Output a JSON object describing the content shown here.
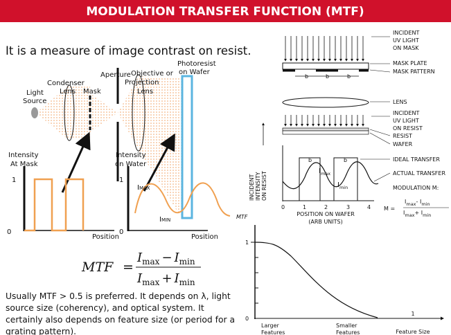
{
  "header": {
    "title": "MODULATION TRANSFER FUNCTION (MTF)"
  },
  "intro": "It is a measure of image contrast on resist.",
  "optics": {
    "light_source": [
      "Light",
      "Source"
    ],
    "condenser_lens": [
      "Condenser",
      "Lens"
    ],
    "mask": "Mask",
    "aperture": "Aperture",
    "projection_lens": [
      "Objective or",
      "Projection",
      "Lens"
    ],
    "photoresist": [
      "Photoresist",
      "on Wafer"
    ]
  },
  "mask_plot": {
    "ylabel": [
      "Intensity",
      "At Mask"
    ],
    "ticks": [
      "1",
      "0"
    ],
    "xlabel": "Position"
  },
  "wafer_plot": {
    "ylabel": [
      "Intensity",
      "on Water"
    ],
    "ticks": [
      "1",
      "0"
    ],
    "xlabel": "Position",
    "max": [
      "I",
      "MAX"
    ],
    "min": [
      "I",
      "MIN"
    ]
  },
  "formula": {
    "lhs": "MTF",
    "eq": "=",
    "numerator": [
      "I",
      "max",
      "−",
      "I",
      "min"
    ],
    "denominator": [
      "I",
      "max",
      "+",
      "I",
      "min"
    ]
  },
  "paragraph": [
    "Usually MTF > 0.5 is preferred. It depends on λ, light",
    "source size (coherency), and optical system. It",
    "certainly also depends on feature size (or period for a",
    "grating pattern)."
  ],
  "schematic": {
    "incident_mask": [
      "INCIDENT",
      "UV LIGHT",
      "ON MASK"
    ],
    "mask_plate": "MASK PLATE",
    "mask_pattern": "MASK PATTERN",
    "mask_b": [
      "b",
      "b",
      "b"
    ],
    "lens": "LENS",
    "incident_resist": [
      "INCIDENT",
      "UV LIGHT",
      "ON RESIST"
    ],
    "resist": "RESIST",
    "wafer": "WAFER",
    "ylabel": [
      "INCIDENT",
      "INTENSITY",
      "ON RESIST"
    ],
    "wafer_b": [
      "b",
      "b"
    ],
    "imax": [
      "I",
      "max"
    ],
    "imin": [
      "I",
      "min"
    ],
    "ideal": "IDEAL TRANSFER",
    "actual": "ACTUAL TRANSFER",
    "modulation": "MODULATION M:",
    "m_lhs": "M =",
    "m_num": [
      "I",
      "max",
      "- I",
      "min"
    ],
    "m_den": [
      "I",
      "max",
      "+ I",
      "min"
    ],
    "xticks": [
      "0",
      "1",
      "2",
      "3",
      "4"
    ],
    "xlabel": [
      "POSITION ON WAFER",
      "(ARB UNITS)"
    ]
  },
  "mtf_plot": {
    "ylabel": "MTF",
    "ticks": [
      "1",
      "0"
    ],
    "larger": [
      "Larger",
      "Features"
    ],
    "smaller": [
      "Smaller",
      "Features"
    ],
    "x_num": "1",
    "x_den": "Feature Size"
  }
}
